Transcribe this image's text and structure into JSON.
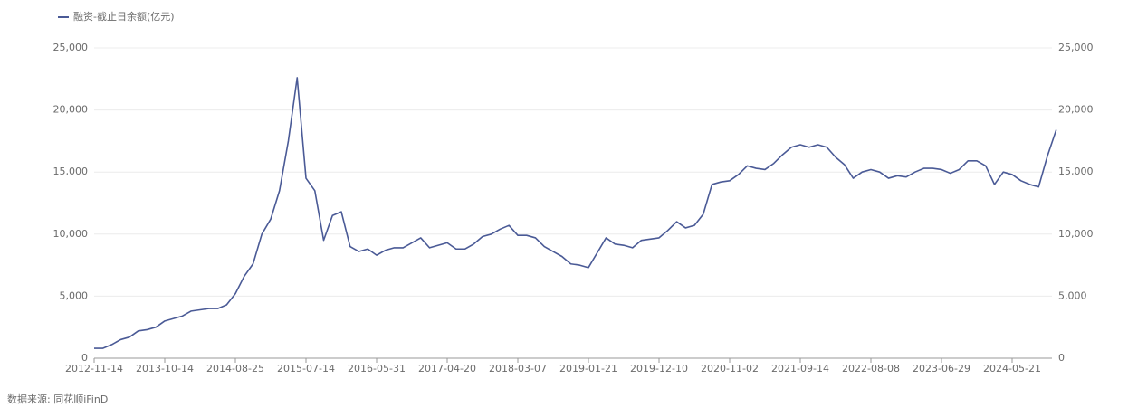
{
  "chart_data": {
    "type": "line",
    "series": [
      {
        "name": "融资-截止日余额(亿元)",
        "color": "#4a5a96",
        "values": [
          800,
          800,
          1100,
          1500,
          1700,
          2200,
          2300,
          2500,
          3000,
          3200,
          3400,
          3800,
          3900,
          4000,
          4000,
          4300,
          5200,
          6600,
          7600,
          10000,
          11200,
          13500,
          17500,
          22600,
          14500,
          13500,
          9500,
          11500,
          11800,
          9000,
          8600,
          8800,
          8300,
          8700,
          8900,
          8900,
          9300,
          9700,
          8900,
          9100,
          9300,
          8800,
          8800,
          9200,
          9800,
          10000,
          10400,
          10700,
          9900,
          9900,
          9700,
          9000,
          8600,
          8200,
          7600,
          7500,
          7300,
          8500,
          9700,
          9200,
          9100,
          8900,
          9500,
          9600,
          9700,
          10300,
          11000,
          10500,
          10700,
          11600,
          14000,
          14200,
          14300,
          14800,
          15500,
          15300,
          15200,
          15700,
          16400,
          17000,
          17200,
          17000,
          17200,
          17000,
          16200,
          15600,
          14500,
          15000,
          15200,
          15000,
          14500,
          14700,
          14600,
          15000,
          15300,
          15300,
          15200,
          14900,
          15200,
          15900,
          15900,
          15500,
          14000,
          15000,
          14800,
          14300,
          14000,
          13800,
          16300,
          18400
        ]
      }
    ],
    "categories": [
      "2012-11-14",
      null,
      null,
      null,
      null,
      null,
      null,
      null,
      "2013-10-14",
      null,
      null,
      null,
      null,
      null,
      null,
      null,
      "2014-08-25",
      null,
      null,
      null,
      null,
      null,
      null,
      null,
      "2015-07-14",
      null,
      null,
      null,
      null,
      null,
      null,
      null,
      "2016-05-31",
      null,
      null,
      null,
      null,
      null,
      null,
      null,
      "2017-04-20",
      null,
      null,
      null,
      null,
      null,
      null,
      null,
      "2018-03-07",
      null,
      null,
      null,
      null,
      null,
      null,
      null,
      "2019-01-21",
      null,
      null,
      null,
      null,
      null,
      null,
      null,
      "2019-12-10",
      null,
      null,
      null,
      null,
      null,
      null,
      null,
      "2020-11-02",
      null,
      null,
      null,
      null,
      null,
      null,
      null,
      "2021-09-14",
      null,
      null,
      null,
      null,
      null,
      null,
      null,
      "2022-08-08",
      null,
      null,
      null,
      null,
      null,
      null,
      null,
      "2023-06-29",
      null,
      null,
      null,
      null,
      null,
      null,
      null,
      "2024-05-21",
      null,
      null,
      null,
      null,
      null
    ],
    "ylim": [
      0,
      25000
    ],
    "yticks": [
      0,
      {
        "value": 5000,
        "label": "5,000"
      },
      {
        "value": 10000,
        "label": "10,000"
      },
      {
        "value": 15000,
        "label": "15,000"
      },
      {
        "value": 20000,
        "label": "20,000"
      },
      {
        "value": 25000,
        "label": "25,000"
      }
    ],
    "y2lim": [
      0,
      25000
    ],
    "y2ticks": [
      0,
      {
        "value": 5000,
        "label": "5,000"
      },
      {
        "value": 10000,
        "label": "10,000"
      },
      {
        "value": 15000,
        "label": "15,000"
      },
      {
        "value": 20000,
        "label": "20,000"
      },
      {
        "value": 25000,
        "label": "25,000"
      }
    ],
    "grid": true,
    "legend": "top-left",
    "source": "数据来源: 同花顺iFinD"
  }
}
